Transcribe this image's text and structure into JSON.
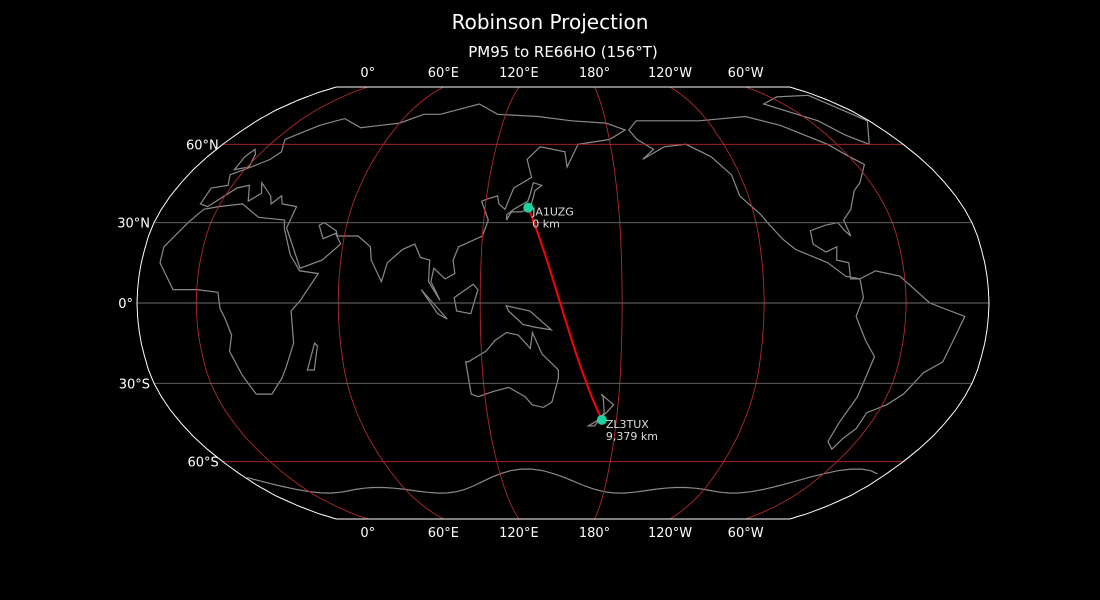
{
  "title": "Robinson Projection",
  "subtitle": "PM95 to RE66HO (156°T)",
  "map": {
    "projection": "Robinson",
    "central_longitude": 155,
    "colors": {
      "background": "#000000",
      "coastline": "#8a8a8a",
      "graticule_major": "#b02a2a",
      "graticule_minor": "#6e6e6e",
      "outline": "#ffffff",
      "path": "#ff0000",
      "marker": "#1fd1a0"
    },
    "lon_ticks_top": [
      "0°",
      "60°E",
      "120°E",
      "180°",
      "120°W",
      "60°W"
    ],
    "lon_ticks_bottom": [
      "0°",
      "60°E",
      "120°E",
      "180°",
      "120°W",
      "60°W"
    ],
    "lon_tick_values": [
      0,
      60,
      120,
      180,
      240,
      300
    ],
    "lat_ticks": [
      "60°N",
      "30°N",
      "0°",
      "30°S",
      "60°S"
    ],
    "lat_tick_values": [
      60,
      30,
      0,
      -30,
      -60
    ],
    "stations": [
      {
        "call": "JA1UZG",
        "distance": "0 km",
        "lat": 35.6,
        "lon": 139.4
      },
      {
        "call": "ZL3TUX",
        "distance": "9,379 km",
        "lat": -43.7,
        "lon": 173.2
      }
    ]
  }
}
